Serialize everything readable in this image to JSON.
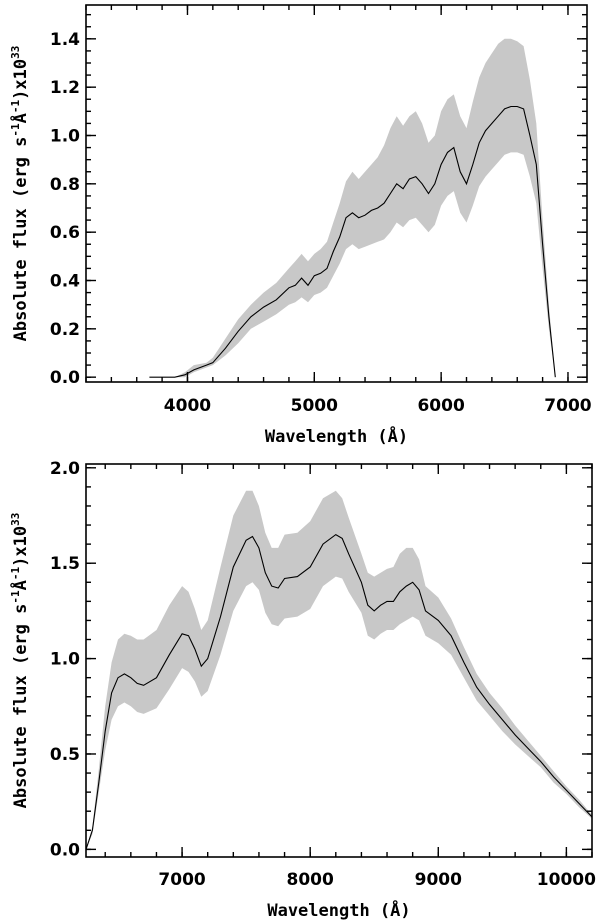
{
  "chart_data": [
    {
      "type": "area",
      "xlabel": "Wavelength (Å)",
      "ylabel_main": "Absolute flux (erg s",
      "ylabel_sup1": "-1",
      "ylabel_mid": "Å",
      "ylabel_sup2": "-1",
      "ylabel_tail": ")x10",
      "ylabel_exp": "33",
      "xlim": [
        3200,
        7150
      ],
      "ylim": [
        -0.02,
        1.54
      ],
      "x_major_ticks": [
        4000,
        5000,
        6000,
        7000
      ],
      "x_tick_labels": [
        "4000",
        "5000",
        "6000",
        "7000"
      ],
      "y_major_ticks": [
        0.0,
        0.2,
        0.4,
        0.6,
        0.8,
        1.0,
        1.2,
        1.4
      ],
      "y_tick_labels": [
        "0.0",
        "0.2",
        "0.4",
        "0.6",
        "0.8",
        "1.0",
        "1.2",
        "1.4"
      ],
      "x_minor_step": 200,
      "y_minor_step": 0.05,
      "series": [
        {
          "name": "mean",
          "x": [
            3700,
            3900,
            3980,
            4050,
            4150,
            4200,
            4300,
            4400,
            4500,
            4600,
            4700,
            4800,
            4850,
            4900,
            4950,
            5000,
            5050,
            5100,
            5150,
            5200,
            5250,
            5300,
            5350,
            5400,
            5450,
            5500,
            5550,
            5600,
            5650,
            5700,
            5750,
            5800,
            5850,
            5900,
            5950,
            6000,
            6050,
            6100,
            6150,
            6200,
            6250,
            6300,
            6350,
            6400,
            6450,
            6500,
            6550,
            6600,
            6650,
            6700,
            6750,
            6800,
            6850,
            6900
          ],
          "y": [
            0.0,
            0.0,
            0.01,
            0.03,
            0.05,
            0.06,
            0.12,
            0.19,
            0.25,
            0.29,
            0.32,
            0.37,
            0.38,
            0.41,
            0.38,
            0.42,
            0.43,
            0.45,
            0.52,
            0.58,
            0.66,
            0.68,
            0.66,
            0.67,
            0.69,
            0.7,
            0.72,
            0.76,
            0.8,
            0.78,
            0.82,
            0.83,
            0.8,
            0.76,
            0.8,
            0.88,
            0.93,
            0.95,
            0.85,
            0.8,
            0.88,
            0.97,
            1.02,
            1.05,
            1.08,
            1.11,
            1.12,
            1.12,
            1.11,
            1.0,
            0.88,
            0.55,
            0.25,
            0.0
          ]
        },
        {
          "name": "upper",
          "x": [
            3700,
            3900,
            3980,
            4050,
            4150,
            4200,
            4300,
            4400,
            4500,
            4600,
            4700,
            4800,
            4850,
            4900,
            4950,
            5000,
            5050,
            5100,
            5150,
            5200,
            5250,
            5300,
            5350,
            5400,
            5450,
            5500,
            5550,
            5600,
            5650,
            5700,
            5750,
            5800,
            5850,
            5900,
            5950,
            6000,
            6050,
            6100,
            6150,
            6200,
            6250,
            6300,
            6350,
            6400,
            6450,
            6500,
            6550,
            6600,
            6650,
            6700,
            6750,
            6800,
            6850,
            6900
          ],
          "y": [
            0.0,
            0.0,
            0.02,
            0.05,
            0.06,
            0.08,
            0.16,
            0.24,
            0.3,
            0.35,
            0.39,
            0.45,
            0.48,
            0.51,
            0.48,
            0.51,
            0.53,
            0.56,
            0.64,
            0.72,
            0.81,
            0.85,
            0.82,
            0.85,
            0.88,
            0.91,
            0.96,
            1.03,
            1.08,
            1.04,
            1.08,
            1.1,
            1.05,
            0.97,
            1.0,
            1.1,
            1.15,
            1.17,
            1.08,
            1.03,
            1.14,
            1.24,
            1.3,
            1.34,
            1.38,
            1.4,
            1.4,
            1.39,
            1.37,
            1.23,
            1.05,
            0.65,
            0.3,
            0.0
          ]
        },
        {
          "name": "lower",
          "x": [
            3700,
            3900,
            3980,
            4050,
            4150,
            4200,
            4300,
            4400,
            4500,
            4600,
            4700,
            4800,
            4850,
            4900,
            4950,
            5000,
            5050,
            5100,
            5150,
            5200,
            5250,
            5300,
            5350,
            5400,
            5450,
            5500,
            5550,
            5600,
            5650,
            5700,
            5750,
            5800,
            5850,
            5900,
            5950,
            6000,
            6050,
            6100,
            6150,
            6200,
            6250,
            6300,
            6350,
            6400,
            6450,
            6500,
            6550,
            6600,
            6650,
            6700,
            6750,
            6800,
            6850,
            6900
          ],
          "y": [
            0.0,
            0.0,
            0.0,
            0.02,
            0.04,
            0.05,
            0.09,
            0.14,
            0.2,
            0.23,
            0.26,
            0.3,
            0.31,
            0.33,
            0.31,
            0.34,
            0.35,
            0.37,
            0.42,
            0.47,
            0.53,
            0.55,
            0.53,
            0.54,
            0.55,
            0.56,
            0.57,
            0.6,
            0.64,
            0.62,
            0.65,
            0.66,
            0.63,
            0.6,
            0.63,
            0.71,
            0.75,
            0.77,
            0.68,
            0.64,
            0.71,
            0.79,
            0.83,
            0.86,
            0.89,
            0.92,
            0.93,
            0.93,
            0.92,
            0.83,
            0.72,
            0.45,
            0.2,
            0.0
          ]
        }
      ]
    },
    {
      "type": "area",
      "xlabel": "Wavelength (Å)",
      "ylabel_main": "Absolute flux (erg s",
      "ylabel_sup1": "-1",
      "ylabel_mid": "Å",
      "ylabel_sup2": "-1",
      "ylabel_tail": ")x10",
      "ylabel_exp": "33",
      "xlim": [
        6250,
        10200
      ],
      "ylim": [
        -0.04,
        2.02
      ],
      "x_major_ticks": [
        7000,
        8000,
        9000,
        10000
      ],
      "x_tick_labels": [
        "7000",
        "8000",
        "9000",
        "10000"
      ],
      "y_major_ticks": [
        0.0,
        0.5,
        1.0,
        1.5,
        2.0
      ],
      "y_tick_labels": [
        "0.0",
        "0.5",
        "1.0",
        "1.5",
        "2.0"
      ],
      "x_minor_step": 200,
      "y_minor_step": 0.1,
      "series": [
        {
          "name": "mean",
          "x": [
            6250,
            6300,
            6350,
            6400,
            6450,
            6500,
            6550,
            6600,
            6650,
            6700,
            6800,
            6900,
            7000,
            7050,
            7100,
            7150,
            7200,
            7300,
            7400,
            7500,
            7550,
            7600,
            7650,
            7700,
            7750,
            7800,
            7900,
            8000,
            8100,
            8200,
            8250,
            8300,
            8400,
            8450,
            8500,
            8550,
            8600,
            8650,
            8700,
            8750,
            8800,
            8850,
            8900,
            9000,
            9100,
            9200,
            9300,
            9400,
            9500,
            9600,
            9700,
            9800,
            9900,
            10000,
            10100,
            10200
          ],
          "y": [
            0.0,
            0.1,
            0.35,
            0.62,
            0.82,
            0.9,
            0.92,
            0.9,
            0.87,
            0.86,
            0.9,
            1.02,
            1.13,
            1.12,
            1.05,
            0.96,
            1.0,
            1.22,
            1.48,
            1.62,
            1.64,
            1.58,
            1.45,
            1.38,
            1.37,
            1.42,
            1.43,
            1.48,
            1.6,
            1.65,
            1.63,
            1.55,
            1.4,
            1.28,
            1.25,
            1.28,
            1.3,
            1.3,
            1.35,
            1.38,
            1.4,
            1.36,
            1.25,
            1.2,
            1.12,
            0.98,
            0.85,
            0.76,
            0.68,
            0.6,
            0.53,
            0.46,
            0.38,
            0.31,
            0.24,
            0.17
          ]
        },
        {
          "name": "upper",
          "x": [
            6250,
            6300,
            6350,
            6400,
            6450,
            6500,
            6550,
            6600,
            6650,
            6700,
            6800,
            6900,
            7000,
            7050,
            7100,
            7150,
            7200,
            7300,
            7400,
            7500,
            7550,
            7600,
            7650,
            7700,
            7750,
            7800,
            7900,
            8000,
            8100,
            8200,
            8250,
            8300,
            8400,
            8450,
            8500,
            8550,
            8600,
            8650,
            8700,
            8750,
            8800,
            8850,
            8900,
            9000,
            9100,
            9200,
            9300,
            9400,
            9500,
            9600,
            9700,
            9800,
            9900,
            10000,
            10100,
            10200
          ],
          "y": [
            0.0,
            0.12,
            0.42,
            0.75,
            0.98,
            1.1,
            1.13,
            1.12,
            1.1,
            1.1,
            1.15,
            1.28,
            1.38,
            1.35,
            1.26,
            1.15,
            1.2,
            1.48,
            1.75,
            1.88,
            1.88,
            1.8,
            1.66,
            1.58,
            1.58,
            1.65,
            1.66,
            1.72,
            1.84,
            1.88,
            1.84,
            1.74,
            1.55,
            1.45,
            1.43,
            1.45,
            1.47,
            1.48,
            1.55,
            1.58,
            1.58,
            1.52,
            1.38,
            1.32,
            1.21,
            1.06,
            0.92,
            0.82,
            0.74,
            0.65,
            0.57,
            0.49,
            0.41,
            0.33,
            0.26,
            0.18
          ]
        },
        {
          "name": "lower",
          "x": [
            6250,
            6300,
            6350,
            6400,
            6450,
            6500,
            6550,
            6600,
            6650,
            6700,
            6800,
            6900,
            7000,
            7050,
            7100,
            7150,
            7200,
            7300,
            7400,
            7500,
            7550,
            7600,
            7650,
            7700,
            7750,
            7800,
            7900,
            8000,
            8100,
            8200,
            8250,
            8300,
            8400,
            8450,
            8500,
            8550,
            8600,
            8650,
            8700,
            8750,
            8800,
            8850,
            8900,
            9000,
            9100,
            9200,
            9300,
            9400,
            9500,
            9600,
            9700,
            9800,
            9900,
            10000,
            10100,
            10200
          ],
          "y": [
            0.0,
            0.08,
            0.3,
            0.52,
            0.68,
            0.75,
            0.77,
            0.75,
            0.72,
            0.71,
            0.74,
            0.84,
            0.95,
            0.93,
            0.88,
            0.8,
            0.83,
            1.02,
            1.25,
            1.38,
            1.4,
            1.36,
            1.24,
            1.18,
            1.17,
            1.21,
            1.22,
            1.26,
            1.38,
            1.43,
            1.42,
            1.35,
            1.24,
            1.12,
            1.1,
            1.13,
            1.15,
            1.15,
            1.18,
            1.2,
            1.22,
            1.2,
            1.12,
            1.08,
            1.02,
            0.9,
            0.78,
            0.7,
            0.62,
            0.55,
            0.49,
            0.43,
            0.35,
            0.29,
            0.22,
            0.16
          ]
        }
      ]
    }
  ]
}
